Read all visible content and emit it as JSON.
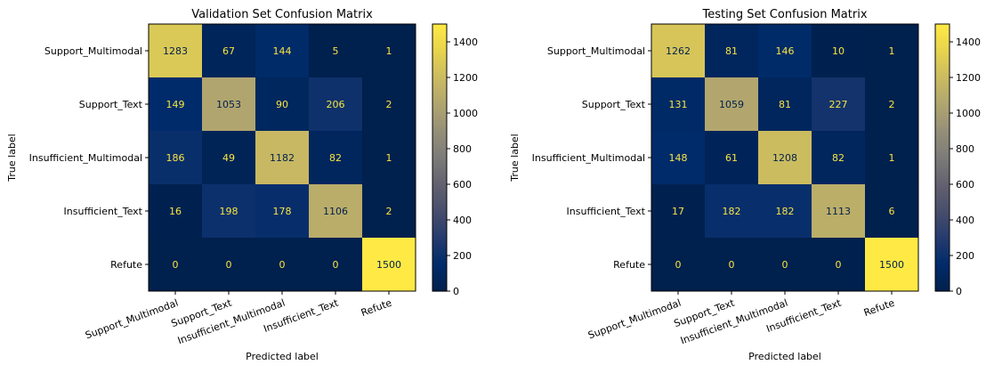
{
  "chart_data": [
    {
      "type": "heatmap",
      "title": "Validation Set Confusion Matrix",
      "xlabel": "Predicted label",
      "ylabel": "True label",
      "categories": [
        "Support_Multimodal",
        "Support_Text",
        "Insufficient_Multimodal",
        "Insufficient_Text",
        "Refute"
      ],
      "matrix": [
        [
          1283,
          67,
          144,
          5,
          1
        ],
        [
          149,
          1053,
          90,
          206,
          2
        ],
        [
          186,
          49,
          1182,
          82,
          1
        ],
        [
          16,
          198,
          178,
          1106,
          2
        ],
        [
          0,
          0,
          0,
          0,
          1500
        ]
      ],
      "colorbar": {
        "ticks": [
          0,
          200,
          400,
          600,
          800,
          1000,
          1200,
          1400
        ],
        "range": [
          0,
          1500
        ]
      },
      "colormap": "cividis"
    },
    {
      "type": "heatmap",
      "title": "Testing Set Confusion Matrix",
      "xlabel": "Predicted label",
      "ylabel": "True label",
      "categories": [
        "Support_Multimodal",
        "Support_Text",
        "Insufficient_Multimodal",
        "Insufficient_Text",
        "Refute"
      ],
      "matrix": [
        [
          1262,
          81,
          146,
          10,
          1
        ],
        [
          131,
          1059,
          81,
          227,
          2
        ],
        [
          148,
          61,
          1208,
          82,
          1
        ],
        [
          17,
          182,
          182,
          1113,
          6
        ],
        [
          0,
          0,
          0,
          0,
          1500
        ]
      ],
      "colorbar": {
        "ticks": [
          0,
          200,
          400,
          600,
          800,
          1000,
          1200,
          1400
        ],
        "range": [
          0,
          1500
        ]
      },
      "colormap": "cividis"
    }
  ]
}
